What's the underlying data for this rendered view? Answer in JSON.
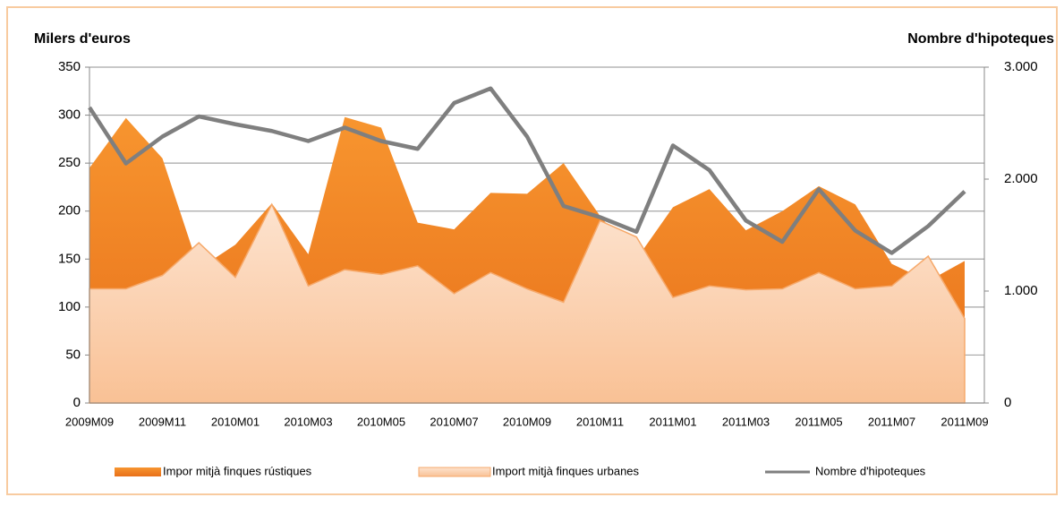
{
  "chart_data": {
    "type": "area-line",
    "y_label": "Milers d'euros",
    "y2_label": "Nombre d'hipoteques",
    "categories": [
      "2009M09",
      null,
      "2009M11",
      null,
      "2010M01",
      null,
      "2010M03",
      null,
      "2010M05",
      null,
      "2010M07",
      null,
      "2010M09",
      null,
      "2010M11",
      null,
      "2011M01",
      null,
      "2011M03",
      null,
      "2011M05",
      null,
      "2011M07",
      null,
      "2011M09"
    ],
    "series": [
      {
        "name": "Impor mitjà finques rústiques",
        "color": "#f28a26",
        "kind": "area",
        "values": [
          245,
          297,
          255,
          140,
          165,
          208,
          155,
          298,
          287,
          188,
          181,
          219,
          218,
          250,
          195,
          150,
          204,
          223,
          180,
          200,
          226,
          207,
          145,
          127,
          148
        ]
      },
      {
        "name": "Import mitjà finques urbanes",
        "color": "#fbcfac",
        "kind": "area",
        "values": [
          119,
          119,
          133,
          167,
          131,
          207,
          122,
          139,
          134,
          143,
          114,
          136,
          119,
          105,
          190,
          173,
          110,
          122,
          118,
          119,
          136,
          119,
          122,
          153,
          88
        ]
      },
      {
        "name": "Nombre d'hipoteques",
        "color": "#7f7f7f",
        "kind": "line",
        "axis": "y2",
        "values": [
          2640,
          2140,
          2380,
          2560,
          2490,
          2430,
          2340,
          2460,
          2340,
          2270,
          2680,
          2810,
          2380,
          1760,
          1660,
          1530,
          2300,
          2080,
          1630,
          1440,
          1910,
          1540,
          1340,
          1580,
          1890
        ]
      }
    ],
    "ylim": [
      0,
      350
    ],
    "yticks": [
      0,
      50,
      100,
      150,
      200,
      250,
      300,
      350
    ],
    "y2lim": [
      0,
      3000
    ],
    "y2ticks": [
      0,
      {
        "value": 1000,
        "label": "1.000"
      },
      {
        "value": 2000,
        "label": "2.000"
      },
      {
        "value": 3000,
        "label": "3.000"
      }
    ],
    "grid": true,
    "legend": "bottom"
  }
}
